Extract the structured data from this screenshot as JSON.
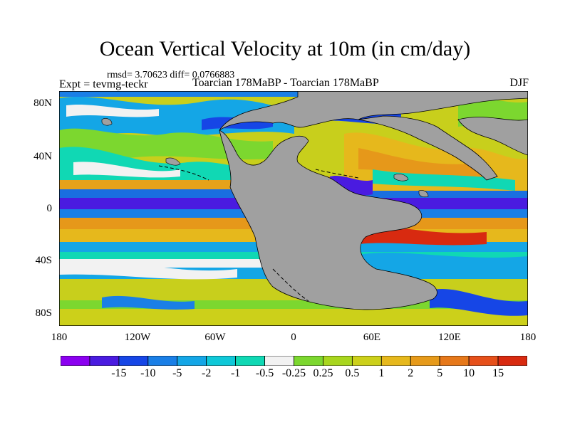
{
  "figure": {
    "title": "Ocean Vertical Velocity at 10m (in cm/day)",
    "stats": "rmsd= 3.70623 diff= 0.0766883",
    "expt": "Expt = tevmg-teckr",
    "experiment_names": "Toarcian 178MaBP - Toarcian 178MaBP",
    "season": "DJF"
  },
  "map": {
    "projection": "cylindrical equidistant",
    "lon_range": [
      -180,
      180
    ],
    "lat_range": [
      -90,
      90
    ],
    "land_color": "#a0a0a0",
    "lat_labels": [
      "80N",
      "40N",
      "0",
      "40S",
      "80S"
    ],
    "lon_labels": [
      "180",
      "120W",
      "60W",
      "0",
      "60E",
      "120E",
      "180"
    ]
  },
  "colorbar": {
    "colors": [
      "#8b00f0",
      "#4a1be0",
      "#1646e6",
      "#1a7fe6",
      "#14a6e6",
      "#0fc8d8",
      "#10d8b4",
      "#f2f2f2",
      "#7cd72f",
      "#a8d61e",
      "#ccd01a",
      "#e6b81c",
      "#e69a1a",
      "#e6781a",
      "#e6501a",
      "#d82a10"
    ],
    "labels": [
      "-15",
      "-10",
      "-5",
      "-2",
      "-1",
      "-0.5",
      "-0.25",
      "0.25",
      "0.5",
      "1",
      "2",
      "5",
      "10",
      "15"
    ]
  }
}
